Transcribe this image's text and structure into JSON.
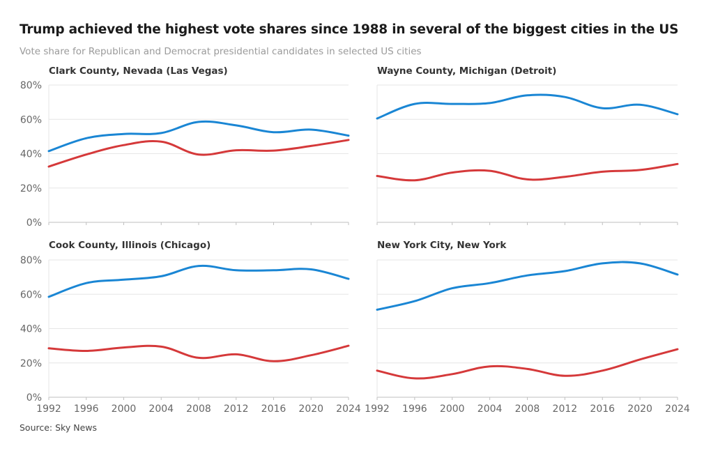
{
  "title": "Trump achieved the highest vote shares since 1988 in several of the biggest cities in the US",
  "subtitle": "Vote share for Republican and Democrat presidential candidates in selected US cities",
  "source": "Source: Sky News",
  "colors": {
    "democrat": "#1a86d4",
    "republican": "#d5393a"
  },
  "chart_data": [
    {
      "type": "line",
      "title": "Clark County, Nevada (Las Vegas)",
      "x": [
        1992,
        1996,
        2000,
        2004,
        2008,
        2012,
        2016,
        2020,
        2024
      ],
      "ylim": [
        0,
        80
      ],
      "yticks": [
        "0%",
        "20%",
        "40%",
        "60%",
        "80%"
      ],
      "xticks": [],
      "series": [
        {
          "name": "Democrat",
          "color": "#1a86d4",
          "values": [
            41.5,
            49,
            51.5,
            52,
            58.5,
            56.5,
            52.5,
            54,
            50.5
          ]
        },
        {
          "name": "Republican",
          "color": "#d5393a",
          "values": [
            32.5,
            39.5,
            45,
            47,
            39.5,
            42,
            41.8,
            44.5,
            48
          ]
        }
      ]
    },
    {
      "type": "line",
      "title": "Wayne County, Michigan (Detroit)",
      "x": [
        1992,
        1996,
        2000,
        2004,
        2008,
        2012,
        2016,
        2020,
        2024
      ],
      "ylim": [
        0,
        80
      ],
      "yticks": [],
      "xticks": [],
      "series": [
        {
          "name": "Democrat",
          "color": "#1a86d4",
          "values": [
            60.5,
            69,
            69,
            69.5,
            74,
            73,
            66.5,
            68.5,
            63
          ]
        },
        {
          "name": "Republican",
          "color": "#d5393a",
          "values": [
            27,
            24.5,
            29,
            30,
            25,
            26.5,
            29.5,
            30.5,
            34
          ]
        }
      ]
    },
    {
      "type": "line",
      "title": "Cook County, Illinois (Chicago)",
      "x": [
        1992,
        1996,
        2000,
        2004,
        2008,
        2012,
        2016,
        2020,
        2024
      ],
      "ylim": [
        0,
        80
      ],
      "yticks": [
        "0%",
        "20%",
        "40%",
        "60%",
        "80%"
      ],
      "xticks": [
        "1992",
        "1996",
        "2000",
        "2004",
        "2008",
        "2012",
        "2016",
        "2020",
        "2024"
      ],
      "series": [
        {
          "name": "Democrat",
          "color": "#1a86d4",
          "values": [
            58.5,
            66.5,
            68.5,
            70.5,
            76.5,
            74,
            74,
            74.5,
            69
          ]
        },
        {
          "name": "Republican",
          "color": "#d5393a",
          "values": [
            28.5,
            27,
            29,
            29.5,
            23,
            25,
            21,
            24.5,
            30
          ]
        }
      ]
    },
    {
      "type": "line",
      "title": "New York City, New York",
      "x": [
        1992,
        1996,
        2000,
        2004,
        2008,
        2012,
        2016,
        2020,
        2024
      ],
      "ylim": [
        0,
        80
      ],
      "yticks": [],
      "xticks": [
        "1992",
        "1996",
        "2000",
        "2004",
        "2008",
        "2012",
        "2016",
        "2020",
        "2024"
      ],
      "series": [
        {
          "name": "Democrat",
          "color": "#1a86d4",
          "values": [
            51,
            56,
            63.5,
            66.5,
            71,
            73.5,
            78,
            78,
            71.5
          ]
        },
        {
          "name": "Republican",
          "color": "#d5393a",
          "values": [
            15.5,
            11,
            13.5,
            18,
            16.5,
            12.5,
            15.5,
            22,
            28
          ]
        }
      ]
    }
  ]
}
